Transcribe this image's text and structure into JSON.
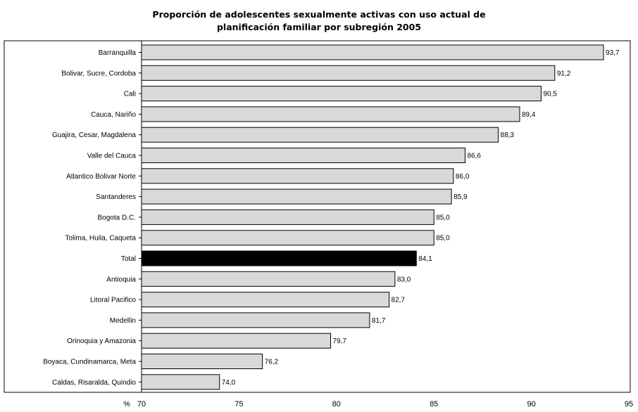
{
  "chart_data": {
    "type": "bar",
    "orientation": "horizontal",
    "title_lines": [
      "Proporción de adolescentes sexualmente activas con uso actual de",
      "planificación familiar por subregión 2005"
    ],
    "categories": [
      "Barranquilla",
      "Bolivar, Sucre, Cordoba",
      "Cali",
      "Cauca, Nariño",
      "Guajira, Cesar, Magdalena",
      "Valle del Cauca",
      "Atlantico Bolivar Norte",
      "Santanderes",
      "Bogota D.C.",
      "Tolima, Huila, Caqueta",
      "Total",
      "Antioquia",
      "Litoral Pacifico",
      "Medellin",
      "Orinoquia y Amazonia",
      "Boyaca, Cundinamarca, Meta",
      "Caldas, Risaralda, Quindio"
    ],
    "values": [
      93.7,
      91.2,
      90.5,
      89.4,
      88.3,
      86.6,
      86.0,
      85.9,
      85.0,
      85.0,
      84.1,
      83.0,
      82.7,
      81.7,
      79.7,
      76.2,
      74.0
    ],
    "value_labels": [
      "93,7",
      "91,2",
      "90,5",
      "89,4",
      "88,3",
      "86,6",
      "86,0",
      "85,9",
      "85,0",
      "85,0",
      "84,1",
      "83,0",
      "82,7",
      "81,7",
      "79,7",
      "76,2",
      "74,0"
    ],
    "highlight_category": "Total",
    "xlim": [
      70,
      95
    ],
    "x_ticks": [
      70,
      75,
      80,
      85,
      90,
      95
    ],
    "x_tick_labels": [
      "70",
      "75",
      "80",
      "85",
      "90",
      "95"
    ],
    "x_unit_label": "%",
    "grid": false,
    "legend": "none",
    "bar_color": "#d9d9d9",
    "highlight_color": "#000000",
    "edge_color": "#000000"
  }
}
